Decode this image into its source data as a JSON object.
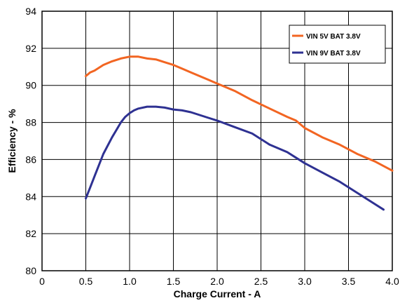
{
  "chart_data": {
    "type": "line",
    "xlabel": "Charge Current - A",
    "ylabel": "Efficiency - %",
    "xlim": [
      0,
      4.0
    ],
    "ylim": [
      80,
      94
    ],
    "grid": true,
    "legend_position": "top-right",
    "x_ticks": [
      "0",
      "0.5",
      "1.0",
      "1.5",
      "2.0",
      "2.5",
      "3.0",
      "3.5",
      "4.0"
    ],
    "y_ticks": [
      "80",
      "82",
      "84",
      "86",
      "88",
      "90",
      "92",
      "94"
    ],
    "series": [
      {
        "name": "VIN 5V BAT 3.8V",
        "color": "#f26522",
        "points": [
          [
            0.5,
            90.5
          ],
          [
            0.55,
            90.7
          ],
          [
            0.6,
            90.8
          ],
          [
            0.7,
            91.1
          ],
          [
            0.8,
            91.3
          ],
          [
            0.9,
            91.45
          ],
          [
            1.0,
            91.55
          ],
          [
            1.1,
            91.55
          ],
          [
            1.2,
            91.45
          ],
          [
            1.3,
            91.4
          ],
          [
            1.4,
            91.25
          ],
          [
            1.5,
            91.1
          ],
          [
            1.6,
            90.9
          ],
          [
            1.7,
            90.7
          ],
          [
            1.8,
            90.5
          ],
          [
            1.9,
            90.3
          ],
          [
            2.0,
            90.1
          ],
          [
            2.2,
            89.7
          ],
          [
            2.4,
            89.2
          ],
          [
            2.6,
            88.75
          ],
          [
            2.8,
            88.3
          ],
          [
            2.9,
            88.1
          ],
          [
            3.0,
            87.7
          ],
          [
            3.2,
            87.2
          ],
          [
            3.4,
            86.8
          ],
          [
            3.6,
            86.3
          ],
          [
            3.8,
            85.9
          ],
          [
            4.0,
            85.4
          ]
        ]
      },
      {
        "name": "VIN 9V BAT 3.8V",
        "color": "#2e3192",
        "points": [
          [
            0.5,
            83.9
          ],
          [
            0.55,
            84.5
          ],
          [
            0.6,
            85.1
          ],
          [
            0.7,
            86.3
          ],
          [
            0.8,
            87.2
          ],
          [
            0.85,
            87.6
          ],
          [
            0.9,
            88.0
          ],
          [
            0.95,
            88.3
          ],
          [
            1.0,
            88.5
          ],
          [
            1.05,
            88.65
          ],
          [
            1.1,
            88.75
          ],
          [
            1.2,
            88.85
          ],
          [
            1.3,
            88.85
          ],
          [
            1.4,
            88.8
          ],
          [
            1.5,
            88.7
          ],
          [
            1.6,
            88.65
          ],
          [
            1.7,
            88.55
          ],
          [
            1.8,
            88.4
          ],
          [
            1.9,
            88.25
          ],
          [
            2.0,
            88.1
          ],
          [
            2.2,
            87.75
          ],
          [
            2.4,
            87.4
          ],
          [
            2.6,
            86.8
          ],
          [
            2.8,
            86.4
          ],
          [
            2.9,
            86.1
          ],
          [
            3.0,
            85.8
          ],
          [
            3.2,
            85.3
          ],
          [
            3.4,
            84.8
          ],
          [
            3.6,
            84.2
          ],
          [
            3.8,
            83.6
          ],
          [
            3.9,
            83.3
          ]
        ]
      }
    ]
  }
}
